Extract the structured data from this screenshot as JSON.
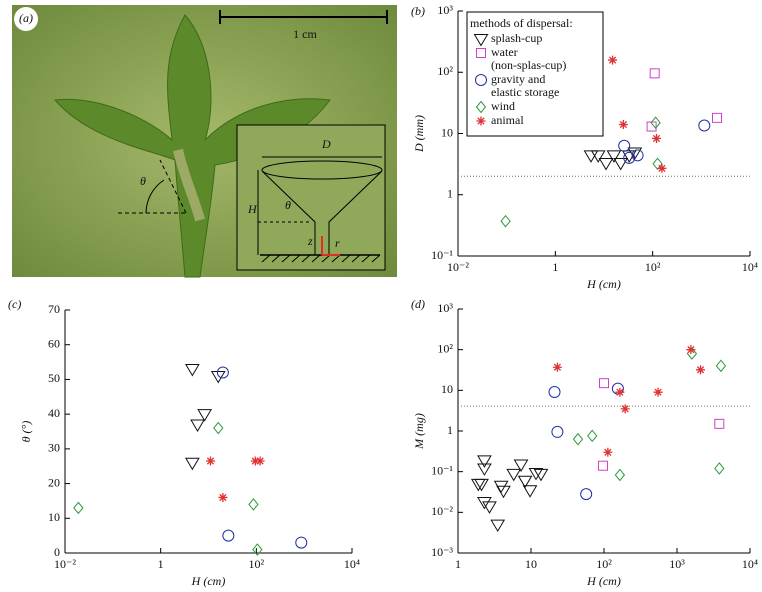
{
  "panel_a": {
    "label": "(a)",
    "scale": "1 cm",
    "labels": [
      "θ",
      "D",
      "H",
      "θ",
      "z",
      "r"
    ]
  },
  "chart_data": [
    {
      "type": "scatter",
      "panel": "(b)",
      "xlabel": "H (cm)",
      "ylabel": "D (mm)",
      "xlog": true,
      "ylog": true,
      "xlim": [
        0.01,
        10000
      ],
      "xticks": [
        {
          "value": 0.01,
          "label": "10⁻²"
        },
        1,
        {
          "value": 100,
          "label": "10²"
        },
        {
          "value": 10000,
          "label": "10⁴"
        }
      ],
      "ylim": [
        0.1,
        1000
      ],
      "yticks": [
        {
          "value": 0.1,
          "label": "10⁻¹"
        },
        1,
        10,
        {
          "value": 100,
          "label": "10²"
        },
        {
          "value": 1000,
          "label": "10³"
        }
      ],
      "hline": 2,
      "legend_title": "methods of dispersal:",
      "legend": "upper left",
      "series": [
        {
          "name": "splash-cup",
          "marker": "triangle-down",
          "color": "#111111",
          "x": [
            5.4,
            7.6,
            11,
            16,
            22,
            33,
            43
          ],
          "values": [
            4.4,
            4.4,
            3.3,
            4.4,
            3.3,
            4.4,
            4.9
          ]
        },
        {
          "name": "water\n(non-splas-cup)",
          "marker": "square",
          "color": "#d040c8",
          "x": [
            110,
            95,
            2100
          ],
          "values": [
            96,
            13,
            18
          ]
        },
        {
          "name": "gravity and\nelastic storage",
          "marker": "circle",
          "color": "#2030a8",
          "x": [
            26,
            33,
            49,
            1150
          ],
          "values": [
            6.3,
            4,
            4.4,
            13.5
          ]
        },
        {
          "name": "wind",
          "marker": "diamond",
          "color": "#2a9a3a",
          "x": [
            0.095,
            115,
            126
          ],
          "values": [
            0.37,
            15,
            3.2
          ]
        },
        {
          "name": "animal",
          "marker": "star",
          "color": "#e03030",
          "x": [
            15,
            25,
            120,
            155
          ],
          "values": [
            158,
            14,
            8.3,
            2.7
          ]
        }
      ]
    },
    {
      "type": "scatter",
      "panel": "(c)",
      "xlabel": "H (cm)",
      "ylabel": "θ (°)",
      "xlog": true,
      "ylog": false,
      "xlim": [
        0.01,
        10000
      ],
      "xticks": [
        {
          "value": 0.01,
          "label": "10⁻²"
        },
        1,
        {
          "value": 100,
          "label": "10²"
        },
        {
          "value": 10000,
          "label": "10⁴"
        }
      ],
      "ylim": [
        0,
        70
      ],
      "yticks": [
        0,
        10,
        20,
        30,
        40,
        50,
        60,
        70
      ],
      "series": [
        {
          "marker": "triangle-down",
          "color": "#111111",
          "x": [
            4.6,
            5.9,
            8.3,
            4.6,
            16
          ],
          "values": [
            53,
            37,
            40,
            26,
            51
          ]
        },
        {
          "marker": "circle",
          "color": "#2030a8",
          "x": [
            20,
            26,
            870
          ],
          "values": [
            52,
            5,
            3
          ]
        },
        {
          "marker": "diamond",
          "color": "#2a9a3a",
          "x": [
            0.019,
            16,
            87,
            105
          ],
          "values": [
            13,
            36,
            14,
            1
          ]
        },
        {
          "marker": "star",
          "color": "#e03030",
          "x": [
            11,
            95,
            120,
            20
          ],
          "values": [
            26.5,
            26.5,
            26.5,
            16
          ]
        }
      ]
    },
    {
      "type": "scatter",
      "panel": "(d)",
      "xlabel": "H (cm)",
      "ylabel": "M (mg)",
      "xlog": true,
      "ylog": true,
      "xlim": [
        1,
        10000
      ],
      "xticks": [
        1,
        10,
        {
          "value": 100,
          "label": "10²"
        },
        {
          "value": 1000,
          "label": "10³"
        },
        {
          "value": 10000,
          "label": "10⁴"
        }
      ],
      "ylim": [
        0.001,
        1000
      ],
      "yticks": [
        {
          "value": 0.001,
          "label": "10⁻³"
        },
        {
          "value": 0.01,
          "label": "10⁻²"
        },
        {
          "value": 0.1,
          "label": "10⁻¹"
        },
        1,
        10,
        {
          "value": 100,
          "label": "10²"
        },
        {
          "value": 1000,
          "label": "10³"
        }
      ],
      "hline": 4.1,
      "series": [
        {
          "marker": "triangle-down",
          "color": "#111111",
          "x": [
            1.9,
            2.1,
            2.3,
            2.3,
            2.3,
            2.7,
            3.5,
            3.9,
            4.2,
            5.8,
            7.3,
            8.3,
            9.7,
            11.7,
            13.7
          ],
          "values": [
            0.05,
            0.05,
            0.19,
            0.12,
            0.018,
            0.014,
            0.005,
            0.045,
            0.034,
            0.088,
            0.15,
            0.06,
            0.035,
            0.093,
            0.088
          ]
        },
        {
          "marker": "square",
          "color": "#d040c8",
          "x": [
            100,
            97,
            3800
          ],
          "values": [
            15,
            0.14,
            1.5
          ]
        },
        {
          "marker": "circle",
          "color": "#2030a8",
          "x": [
            21,
            23,
            57,
            155
          ],
          "values": [
            9.1,
            0.95,
            0.028,
            11
          ]
        },
        {
          "marker": "diamond",
          "color": "#2a9a3a",
          "x": [
            44,
            69,
            165,
            1600,
            4000,
            3800
          ],
          "values": [
            0.63,
            0.76,
            0.083,
            80,
            40,
            0.12
          ]
        },
        {
          "marker": "star",
          "color": "#e03030",
          "x": [
            23,
            165,
            195,
            113,
            550,
            1550,
            2100
          ],
          "values": [
            37,
            9,
            3.5,
            0.3,
            9,
            100,
            32
          ]
        }
      ]
    }
  ]
}
